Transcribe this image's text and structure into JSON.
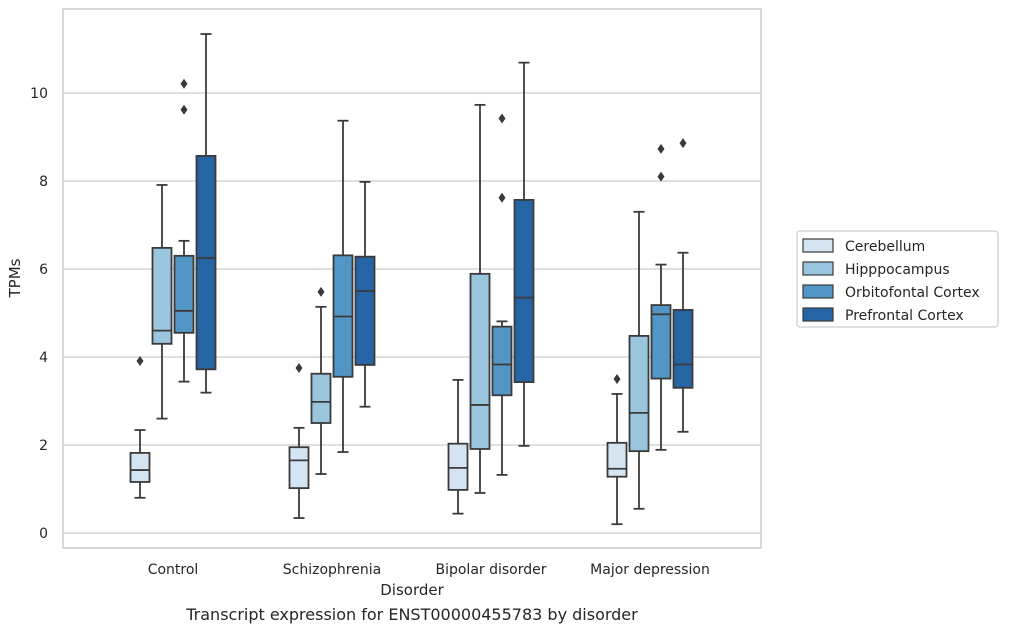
{
  "caption": "Transcript expression for ENST00000455783 by disorder",
  "chart_data": {
    "type": "box",
    "xlabel": "Disorder",
    "ylabel": "TPMs",
    "ylim": [
      -0.3,
      11.9
    ],
    "yticks": [
      0,
      2,
      4,
      6,
      8,
      10
    ],
    "grid": "horizontal",
    "legend_position": "right",
    "categories": [
      "Control",
      "Schizophrenia",
      "Bipolar disorder",
      "Major depression"
    ],
    "series": [
      {
        "name": "Cerebellum",
        "color": "#d4e4f2",
        "boxes": [
          {
            "whislo": 0.8,
            "q1": 1.16,
            "med": 1.43,
            "q3": 1.82,
            "whishi": 2.34,
            "fliers": [
              3.91
            ]
          },
          {
            "whislo": 0.34,
            "q1": 1.02,
            "med": 1.65,
            "q3": 1.95,
            "whishi": 2.39,
            "fliers": [
              3.75
            ]
          },
          {
            "whislo": 0.44,
            "q1": 0.98,
            "med": 1.48,
            "q3": 2.03,
            "whishi": 3.48,
            "fliers": []
          },
          {
            "whislo": 0.2,
            "q1": 1.28,
            "med": 1.46,
            "q3": 2.05,
            "whishi": 3.16,
            "fliers": [
              3.5
            ]
          }
        ]
      },
      {
        "name": "Hipppocampus",
        "color": "#9ac5de",
        "boxes": [
          {
            "whislo": 2.6,
            "q1": 4.3,
            "med": 4.6,
            "q3": 6.48,
            "whishi": 7.91,
            "fliers": []
          },
          {
            "whislo": 1.34,
            "q1": 2.5,
            "med": 2.98,
            "q3": 3.62,
            "whishi": 5.14,
            "fliers": [
              5.48
            ]
          },
          {
            "whislo": 0.91,
            "q1": 1.91,
            "med": 2.91,
            "q3": 5.89,
            "whishi": 9.73,
            "fliers": []
          },
          {
            "whislo": 0.55,
            "q1": 1.86,
            "med": 2.73,
            "q3": 4.48,
            "whishi": 7.3,
            "fliers": []
          }
        ]
      },
      {
        "name": "Orbitofontal Cortex",
        "color": "#5296c6",
        "boxes": [
          {
            "whislo": 3.44,
            "q1": 4.55,
            "med": 5.05,
            "q3": 6.3,
            "whishi": 6.64,
            "fliers": [
              9.62,
              10.21
            ]
          },
          {
            "whislo": 1.84,
            "q1": 3.55,
            "med": 4.92,
            "q3": 6.31,
            "whishi": 9.37,
            "fliers": []
          },
          {
            "whislo": 1.32,
            "q1": 3.13,
            "med": 3.83,
            "q3": 4.69,
            "whishi": 4.81,
            "fliers": [
              7.62,
              9.42
            ]
          },
          {
            "whislo": 1.89,
            "q1": 3.51,
            "med": 4.97,
            "q3": 5.18,
            "whishi": 6.1,
            "fliers": [
              8.1,
              8.73
            ]
          }
        ]
      },
      {
        "name": "Prefrontal Cortex",
        "color": "#2665a5",
        "boxes": [
          {
            "whislo": 3.19,
            "q1": 3.72,
            "med": 6.25,
            "q3": 8.57,
            "whishi": 11.34,
            "fliers": []
          },
          {
            "whislo": 2.87,
            "q1": 3.82,
            "med": 5.5,
            "q3": 6.28,
            "whishi": 7.98,
            "fliers": []
          },
          {
            "whislo": 1.98,
            "q1": 3.43,
            "med": 5.35,
            "q3": 7.57,
            "whishi": 10.69,
            "fliers": []
          },
          {
            "whislo": 2.3,
            "q1": 3.3,
            "med": 3.83,
            "q3": 5.07,
            "whishi": 6.37,
            "fliers": [
              8.86
            ]
          }
        ]
      }
    ]
  }
}
